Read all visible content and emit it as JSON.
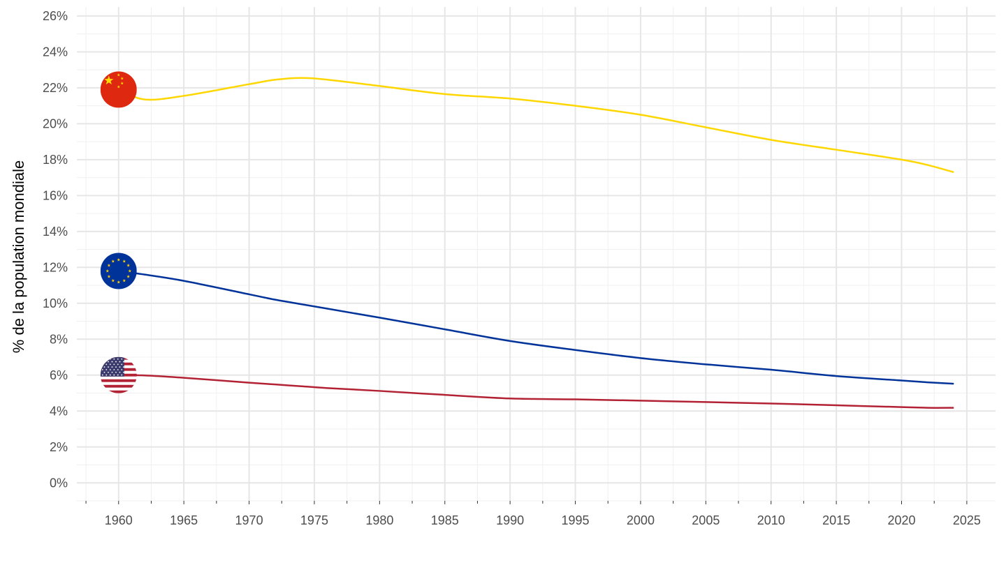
{
  "chart_data": {
    "type": "line",
    "title": "",
    "xlabel": "",
    "ylabel": "% de la population mondiale",
    "xlim": [
      1956.8,
      2027.2
    ],
    "ylim": [
      -1,
      26.5
    ],
    "x_ticks": [
      1960,
      1965,
      1970,
      1975,
      1980,
      1985,
      1990,
      1995,
      2000,
      2005,
      2010,
      2015,
      2020,
      2025
    ],
    "y_ticks": [
      0,
      2,
      4,
      6,
      8,
      10,
      12,
      14,
      16,
      18,
      20,
      22,
      24,
      26
    ],
    "y_tick_labels": [
      "0%",
      "2%",
      "4%",
      "6%",
      "8%",
      "10%",
      "12%",
      "14%",
      "16%",
      "18%",
      "20%",
      "22%",
      "24%",
      "26%"
    ],
    "grid": true,
    "legend": "none (flag markers at 1960)",
    "x": [
      1960,
      1962,
      1965,
      1970,
      1972,
      1974,
      1976,
      1980,
      1985,
      1990,
      1995,
      2000,
      2005,
      2010,
      2015,
      2020,
      2022,
      2024
    ],
    "series": [
      {
        "name": "China",
        "flag": "china-flag",
        "color": "#FFD700",
        "values": [
          21.9,
          21.35,
          21.55,
          22.2,
          22.45,
          22.55,
          22.45,
          22.1,
          21.65,
          21.4,
          21.0,
          20.5,
          19.8,
          19.1,
          18.55,
          18.0,
          17.7,
          17.3
        ]
      },
      {
        "name": "Union européenne",
        "flag": "eu-flag",
        "color": "#003399",
        "values": [
          11.8,
          11.6,
          11.25,
          10.5,
          10.2,
          9.95,
          9.7,
          9.2,
          8.55,
          7.9,
          7.4,
          6.95,
          6.6,
          6.3,
          5.95,
          5.7,
          5.6,
          5.52
        ]
      },
      {
        "name": "États-Unis",
        "flag": "us-flag",
        "color": "#B22234",
        "values": [
          6.0,
          5.98,
          5.85,
          5.58,
          5.48,
          5.38,
          5.28,
          5.12,
          4.9,
          4.7,
          4.65,
          4.58,
          4.5,
          4.42,
          4.32,
          4.22,
          4.18,
          4.18
        ]
      }
    ]
  }
}
